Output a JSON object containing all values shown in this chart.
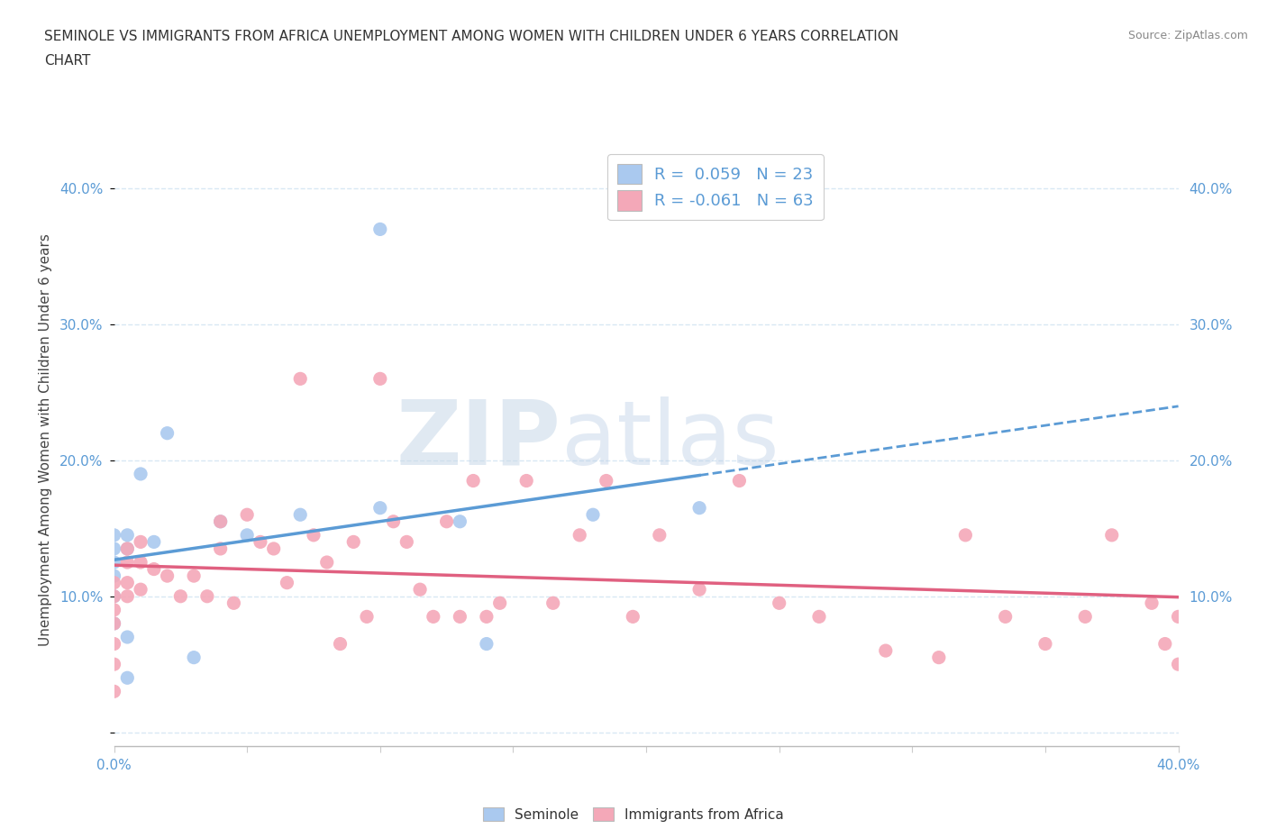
{
  "title_line1": "SEMINOLE VS IMMIGRANTS FROM AFRICA UNEMPLOYMENT AMONG WOMEN WITH CHILDREN UNDER 6 YEARS CORRELATION",
  "title_line2": "CHART",
  "source": "Source: ZipAtlas.com",
  "ylabel": "Unemployment Among Women with Children Under 6 years",
  "xlim": [
    0.0,
    0.4
  ],
  "ylim": [
    -0.01,
    0.44
  ],
  "y_ticks": [
    0.0,
    0.1,
    0.2,
    0.3,
    0.4
  ],
  "y_tick_labels": [
    "",
    "10.0%",
    "20.0%",
    "30.0%",
    "40.0%"
  ],
  "R_seminole": 0.059,
  "N_seminole": 23,
  "R_africa": -0.061,
  "N_africa": 63,
  "color_seminole": "#aac9ef",
  "color_africa": "#f4a8b8",
  "line_color_seminole": "#5b9bd5",
  "line_color_africa": "#e06080",
  "watermark_zip": "ZIP",
  "watermark_atlas": "atlas",
  "background_color": "#ffffff",
  "grid_color": "#d8e8f4",
  "seminole_scatter_x": [
    0.0,
    0.0,
    0.0,
    0.0,
    0.0,
    0.0,
    0.005,
    0.005,
    0.005,
    0.005,
    0.01,
    0.015,
    0.02,
    0.03,
    0.04,
    0.05,
    0.07,
    0.1,
    0.1,
    0.13,
    0.14,
    0.18,
    0.22
  ],
  "seminole_scatter_y": [
    0.145,
    0.135,
    0.125,
    0.115,
    0.1,
    0.08,
    0.145,
    0.135,
    0.07,
    0.04,
    0.19,
    0.14,
    0.22,
    0.055,
    0.155,
    0.145,
    0.16,
    0.165,
    0.37,
    0.155,
    0.065,
    0.16,
    0.165
  ],
  "africa_scatter_x": [
    0.0,
    0.0,
    0.0,
    0.0,
    0.0,
    0.0,
    0.0,
    0.005,
    0.005,
    0.005,
    0.005,
    0.01,
    0.01,
    0.01,
    0.015,
    0.02,
    0.025,
    0.03,
    0.035,
    0.04,
    0.04,
    0.045,
    0.05,
    0.055,
    0.06,
    0.065,
    0.07,
    0.075,
    0.08,
    0.085,
    0.09,
    0.095,
    0.1,
    0.105,
    0.11,
    0.115,
    0.12,
    0.125,
    0.13,
    0.135,
    0.14,
    0.145,
    0.155,
    0.165,
    0.175,
    0.185,
    0.195,
    0.205,
    0.22,
    0.235,
    0.25,
    0.265,
    0.29,
    0.31,
    0.32,
    0.335,
    0.35,
    0.365,
    0.375,
    0.39,
    0.395,
    0.4,
    0.4
  ],
  "africa_scatter_y": [
    0.11,
    0.1,
    0.09,
    0.08,
    0.065,
    0.05,
    0.03,
    0.135,
    0.125,
    0.11,
    0.1,
    0.14,
    0.125,
    0.105,
    0.12,
    0.115,
    0.1,
    0.115,
    0.1,
    0.155,
    0.135,
    0.095,
    0.16,
    0.14,
    0.135,
    0.11,
    0.26,
    0.145,
    0.125,
    0.065,
    0.14,
    0.085,
    0.26,
    0.155,
    0.14,
    0.105,
    0.085,
    0.155,
    0.085,
    0.185,
    0.085,
    0.095,
    0.185,
    0.095,
    0.145,
    0.185,
    0.085,
    0.145,
    0.105,
    0.185,
    0.095,
    0.085,
    0.06,
    0.055,
    0.145,
    0.085,
    0.065,
    0.085,
    0.145,
    0.095,
    0.065,
    0.085,
    0.05
  ]
}
